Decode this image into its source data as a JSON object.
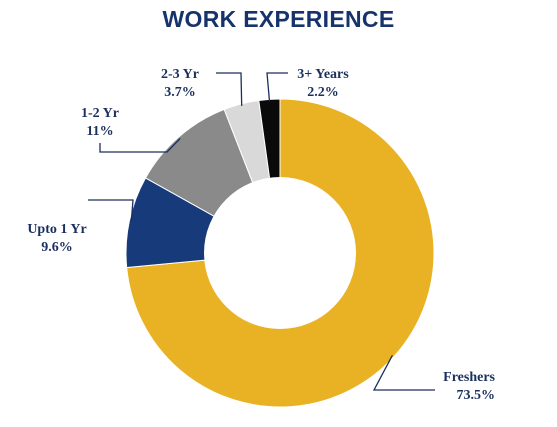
{
  "chart_data": {
    "type": "pie",
    "title": "WORK EXPERIENCE",
    "donut": true,
    "categories": [
      "Freshers",
      "Upto 1 Yr",
      "1-2 Yr",
      "2-3 Yr",
      "3+ Years"
    ],
    "values": [
      73.5,
      9.6,
      11,
      3.7,
      2.2
    ],
    "value_labels": [
      "73.5%",
      "9.6%",
      "11%",
      "3.7%",
      "2.2%"
    ],
    "colors": [
      "#e9b224",
      "#173a7a",
      "#8a8a8a",
      "#d9d9d9",
      "#0a0a0a"
    ],
    "start_angle": "12 o'clock, clockwise",
    "legend": "none (labels with leader lines)"
  }
}
